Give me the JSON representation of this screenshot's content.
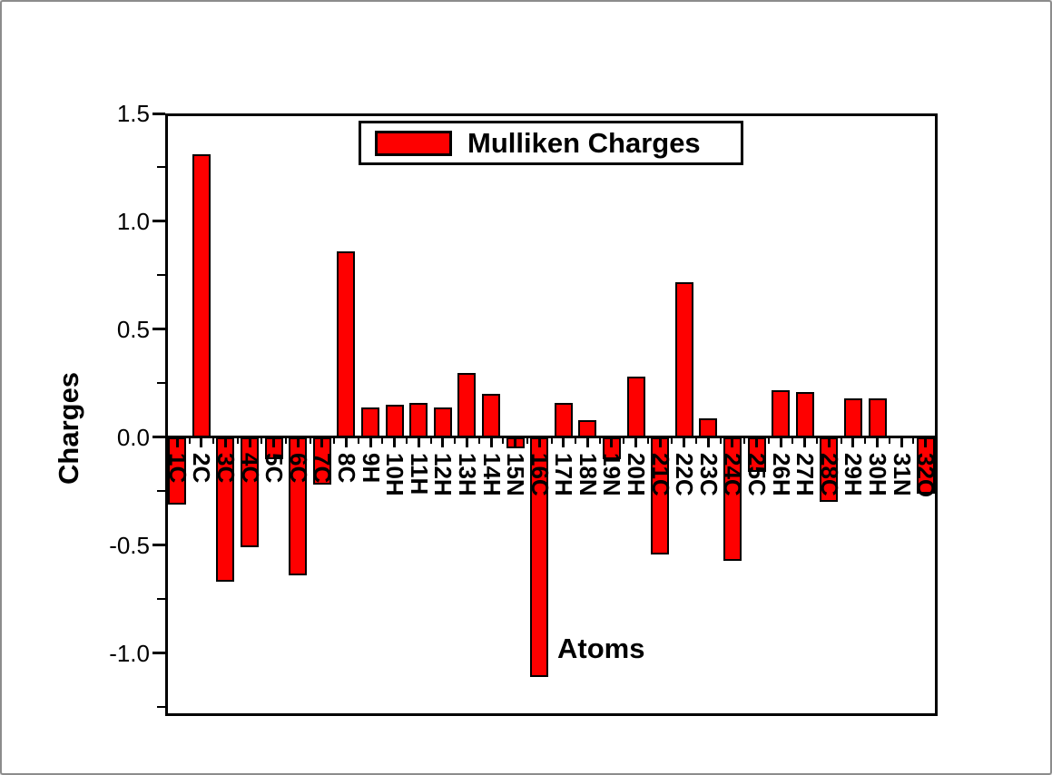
{
  "figure": {
    "background_color": "#ffffff",
    "outer_border_color": "#8c8c8c"
  },
  "chart_data": {
    "type": "bar",
    "title": "",
    "xlabel": "Atoms",
    "ylabel": "Charges",
    "legend": {
      "label": "Mulliken Charges",
      "swatch_color": "#fe0000",
      "position": "top-center"
    },
    "categories": [
      "1C",
      "2C",
      "3C",
      "4C",
      "5C",
      "6C",
      "7C",
      "8C",
      "9H",
      "10H",
      "11H",
      "12H",
      "13H",
      "14H",
      "15N",
      "16C",
      "17H",
      "18N",
      "19N",
      "20H",
      "21C",
      "22C",
      "23C",
      "24C",
      "25C",
      "26H",
      "27H",
      "28C",
      "29H",
      "30H",
      "31N",
      "32O"
    ],
    "values": [
      -0.31,
      1.31,
      -0.67,
      -0.51,
      -0.1,
      -0.64,
      -0.22,
      0.86,
      0.14,
      0.15,
      0.16,
      0.14,
      0.3,
      0.2,
      -0.05,
      -1.11,
      0.16,
      0.08,
      -0.1,
      0.28,
      -0.54,
      0.72,
      0.09,
      -0.57,
      -0.16,
      0.22,
      0.21,
      -0.3,
      0.18,
      0.18,
      0.0,
      -0.26
    ],
    "ylim": [
      -1.29,
      1.5
    ],
    "yticks_major": [
      1.5,
      1.0,
      0.5,
      0.0,
      -0.5,
      -1.0
    ],
    "ytick_labels": [
      "1.5",
      "1.0",
      "0.5",
      "0.0",
      "-0.5",
      "-1.0"
    ],
    "yticks_minor": [
      1.25,
      0.75,
      0.25,
      -0.25,
      -0.75,
      -1.25
    ],
    "bar_color": "#fe0000",
    "bar_edge_color": "#000000",
    "axis_color": "#000000",
    "grid": false,
    "baseline": 0.0
  }
}
